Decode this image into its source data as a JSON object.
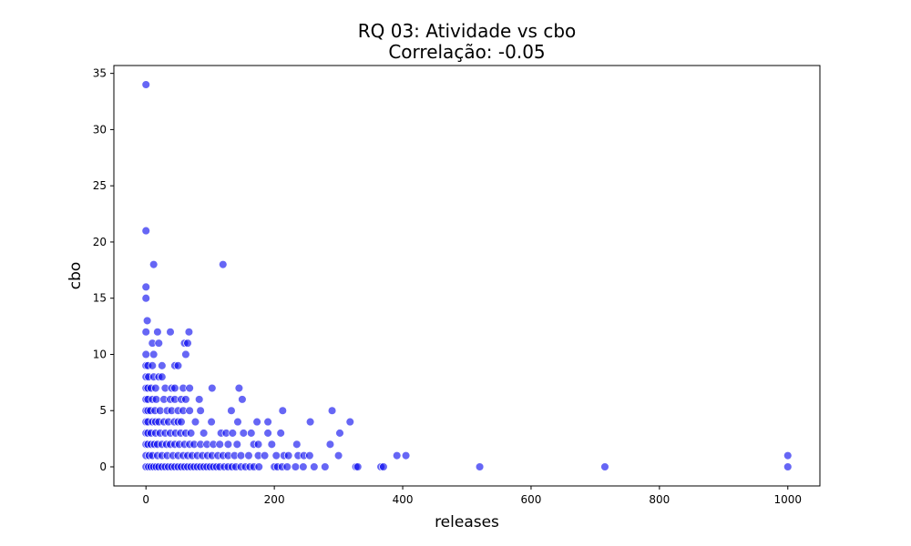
{
  "chart_data": {
    "type": "scatter",
    "title": "RQ 03: Atividade vs cbo",
    "subtitle": "Correlação: -0.05",
    "xlabel": "releases",
    "ylabel": "cbo",
    "xlim": [
      -50,
      1050
    ],
    "ylim": [
      -1.7,
      35.7
    ],
    "xticks": [
      0,
      200,
      400,
      600,
      800,
      1000
    ],
    "yticks": [
      0,
      5,
      10,
      15,
      20,
      25,
      30,
      35
    ],
    "grid": false,
    "marker_color": "#0000ee",
    "marker_edge_color": "#ffffff",
    "marker_opacity": 0.6,
    "points": [
      [
        0,
        34
      ],
      [
        0,
        21
      ],
      [
        12,
        18
      ],
      [
        120,
        18
      ],
      [
        0,
        16
      ],
      [
        0,
        15
      ],
      [
        2,
        13
      ],
      [
        0,
        12
      ],
      [
        18,
        12
      ],
      [
        38,
        12
      ],
      [
        67,
        12
      ],
      [
        10,
        11
      ],
      [
        20,
        11
      ],
      [
        60,
        11
      ],
      [
        65,
        11
      ],
      [
        0,
        10
      ],
      [
        12,
        10
      ],
      [
        62,
        10
      ],
      [
        0,
        9
      ],
      [
        3,
        9
      ],
      [
        10,
        9
      ],
      [
        25,
        9
      ],
      [
        45,
        9
      ],
      [
        50,
        9
      ],
      [
        0,
        8
      ],
      [
        4,
        8
      ],
      [
        12,
        8
      ],
      [
        20,
        8
      ],
      [
        25,
        8
      ],
      [
        0,
        7
      ],
      [
        3,
        7
      ],
      [
        8,
        7
      ],
      [
        15,
        7
      ],
      [
        30,
        7
      ],
      [
        40,
        7
      ],
      [
        45,
        7
      ],
      [
        58,
        7
      ],
      [
        68,
        7
      ],
      [
        103,
        7
      ],
      [
        145,
        7
      ],
      [
        0,
        6
      ],
      [
        3,
        6
      ],
      [
        10,
        6
      ],
      [
        16,
        6
      ],
      [
        28,
        6
      ],
      [
        38,
        6
      ],
      [
        45,
        6
      ],
      [
        55,
        6
      ],
      [
        62,
        6
      ],
      [
        83,
        6
      ],
      [
        150,
        6
      ],
      [
        0,
        5
      ],
      [
        3,
        5
      ],
      [
        7,
        5
      ],
      [
        14,
        5
      ],
      [
        22,
        5
      ],
      [
        33,
        5
      ],
      [
        40,
        5
      ],
      [
        50,
        5
      ],
      [
        58,
        5
      ],
      [
        68,
        5
      ],
      [
        85,
        5
      ],
      [
        133,
        5
      ],
      [
        213,
        5
      ],
      [
        290,
        5
      ],
      [
        0,
        4
      ],
      [
        3,
        4
      ],
      [
        10,
        4
      ],
      [
        15,
        4
      ],
      [
        20,
        4
      ],
      [
        28,
        4
      ],
      [
        35,
        4
      ],
      [
        44,
        4
      ],
      [
        50,
        4
      ],
      [
        55,
        4
      ],
      [
        77,
        4
      ],
      [
        102,
        4
      ],
      [
        143,
        4
      ],
      [
        173,
        4
      ],
      [
        190,
        4
      ],
      [
        256,
        4
      ],
      [
        318,
        4
      ],
      [
        0,
        3
      ],
      [
        3,
        3
      ],
      [
        8,
        3
      ],
      [
        15,
        3
      ],
      [
        22,
        3
      ],
      [
        30,
        3
      ],
      [
        38,
        3
      ],
      [
        46,
        3
      ],
      [
        54,
        3
      ],
      [
        62,
        3
      ],
      [
        70,
        3
      ],
      [
        90,
        3
      ],
      [
        117,
        3
      ],
      [
        125,
        3
      ],
      [
        135,
        3
      ],
      [
        152,
        3
      ],
      [
        164,
        3
      ],
      [
        190,
        3
      ],
      [
        210,
        3
      ],
      [
        302,
        3
      ],
      [
        0,
        2
      ],
      [
        3,
        2
      ],
      [
        8,
        2
      ],
      [
        13,
        2
      ],
      [
        18,
        2
      ],
      [
        25,
        2
      ],
      [
        32,
        2
      ],
      [
        38,
        2
      ],
      [
        45,
        2
      ],
      [
        52,
        2
      ],
      [
        60,
        2
      ],
      [
        68,
        2
      ],
      [
        75,
        2
      ],
      [
        85,
        2
      ],
      [
        95,
        2
      ],
      [
        105,
        2
      ],
      [
        115,
        2
      ],
      [
        128,
        2
      ],
      [
        142,
        2
      ],
      [
        168,
        2
      ],
      [
        175,
        2
      ],
      [
        196,
        2
      ],
      [
        235,
        2
      ],
      [
        287,
        2
      ],
      [
        0,
        1
      ],
      [
        5,
        1
      ],
      [
        10,
        1
      ],
      [
        18,
        1
      ],
      [
        25,
        1
      ],
      [
        33,
        1
      ],
      [
        42,
        1
      ],
      [
        50,
        1
      ],
      [
        58,
        1
      ],
      [
        65,
        1
      ],
      [
        72,
        1
      ],
      [
        80,
        1
      ],
      [
        88,
        1
      ],
      [
        96,
        1
      ],
      [
        103,
        1
      ],
      [
        112,
        1
      ],
      [
        120,
        1
      ],
      [
        128,
        1
      ],
      [
        138,
        1
      ],
      [
        148,
        1
      ],
      [
        160,
        1
      ],
      [
        175,
        1
      ],
      [
        185,
        1
      ],
      [
        203,
        1
      ],
      [
        215,
        1
      ],
      [
        222,
        1
      ],
      [
        237,
        1
      ],
      [
        246,
        1
      ],
      [
        255,
        1
      ],
      [
        300,
        1
      ],
      [
        391,
        1
      ],
      [
        405,
        1
      ],
      [
        1000,
        1
      ],
      [
        0,
        0
      ],
      [
        4,
        0
      ],
      [
        8,
        0
      ],
      [
        12,
        0
      ],
      [
        16,
        0
      ],
      [
        20,
        0
      ],
      [
        25,
        0
      ],
      [
        30,
        0
      ],
      [
        35,
        0
      ],
      [
        40,
        0
      ],
      [
        45,
        0
      ],
      [
        50,
        0
      ],
      [
        55,
        0
      ],
      [
        60,
        0
      ],
      [
        65,
        0
      ],
      [
        70,
        0
      ],
      [
        75,
        0
      ],
      [
        80,
        0
      ],
      [
        85,
        0
      ],
      [
        90,
        0
      ],
      [
        95,
        0
      ],
      [
        100,
        0
      ],
      [
        105,
        0
      ],
      [
        110,
        0
      ],
      [
        115,
        0
      ],
      [
        122,
        0
      ],
      [
        128,
        0
      ],
      [
        134,
        0
      ],
      [
        140,
        0
      ],
      [
        148,
        0
      ],
      [
        155,
        0
      ],
      [
        162,
        0
      ],
      [
        168,
        0
      ],
      [
        176,
        0
      ],
      [
        200,
        0
      ],
      [
        205,
        0
      ],
      [
        212,
        0
      ],
      [
        220,
        0
      ],
      [
        233,
        0
      ],
      [
        245,
        0
      ],
      [
        262,
        0
      ],
      [
        279,
        0
      ],
      [
        327,
        0
      ],
      [
        330,
        0
      ],
      [
        366,
        0
      ],
      [
        370,
        0
      ],
      [
        520,
        0
      ],
      [
        715,
        0
      ],
      [
        1000,
        0
      ]
    ]
  }
}
